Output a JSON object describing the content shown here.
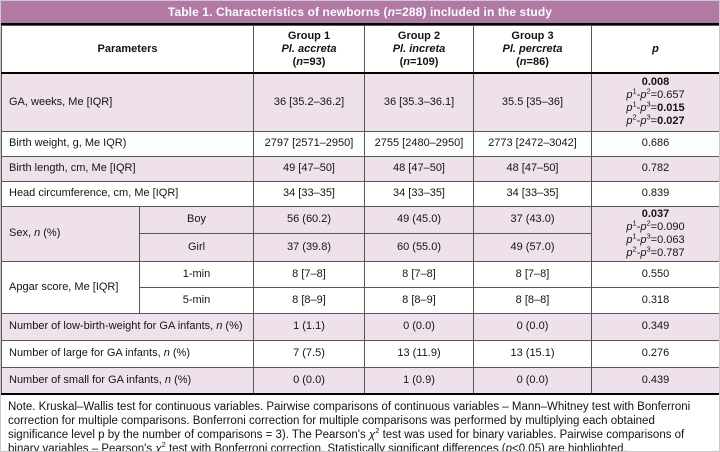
{
  "title": "Table 1. Characteristics of newborns (*n*=288) included in the study",
  "colors": {
    "title_bg": "#b179a4",
    "row_shade": "#eee1ec",
    "grid_line": "#55565a"
  },
  "header": {
    "parameters": "Parameters",
    "groups": [
      [
        "Group 1",
        "*Pl. accreta*",
        "(*n*=93)"
      ],
      [
        "Group 2",
        "*Pl. increta*",
        "(*n*=109)"
      ],
      [
        "Group 3",
        "*Pl. percreta*",
        "(*n*=86)"
      ]
    ],
    "p": "*p*"
  },
  "rows": [
    {
      "label": "GA, weeks, Me [IQR]",
      "values": [
        "36 [35.2–36.2]",
        "36 [35.3–36.1]",
        "35.5 [35–36]"
      ],
      "p": [
        "**0.008**",
        "*p*^1^-*p*^2^=0.657",
        "*p*^1^-*p*^3^=**0.015**",
        "*p*^2^-*p*^3^=**0.027**"
      ]
    },
    {
      "label": "Birth weight, g, Me IQR)",
      "values": [
        "2797 [2571–2950]",
        "2755 [2480–2950]",
        "2773 [2472–3042]"
      ],
      "p": "0.686"
    },
    {
      "label": "Birth length, cm, Me [IQR]",
      "values": [
        "49 [47–50]",
        "48 [47–50]",
        "48 [47–50]"
      ],
      "p": "0.782"
    },
    {
      "label": "Head circumference, cm, Me [IQR]",
      "values": [
        "34 [33–35]",
        "34 [33–35]",
        "34 [33–35]"
      ],
      "p": "0.839"
    },
    {
      "label": "Sex, *n* (%)",
      "sub": [
        {
          "name": "Boy",
          "values": [
            "56 (60.2)",
            "49 (45.0)",
            "37 (43.0)"
          ]
        },
        {
          "name": "Girl",
          "values": [
            "37 (39.8)",
            "60 (55.0)",
            "49 (57.0)"
          ]
        }
      ],
      "p": [
        "**0.037**",
        "*p*^1^-*p*^2^=0.090",
        "*p*^1^-*p*^3^=0.063",
        "*p*^2^-*p*^3^=0.787"
      ]
    },
    {
      "label": "Apgar score, Me [IQR]",
      "sub": [
        {
          "name": "1-min",
          "values": [
            "8 [7–8]",
            "8 [7–8]",
            "8 [7–8]"
          ],
          "p": "0.550"
        },
        {
          "name": "5-min",
          "values": [
            "8 [8–9]",
            "8 [8–9]",
            "8 [8–8]"
          ],
          "p": "0.318"
        }
      ]
    },
    {
      "label": "Number of low-birth-weight for GA infants, *n* (%)",
      "values": [
        "1 (1.1)",
        "0 (0.0)",
        "0 (0.0)"
      ],
      "p": "0.349"
    },
    {
      "label": "Number of large for GA infants, *n* (%)",
      "values": [
        "7 (7.5)",
        "13 (11.9)",
        "13 (15.1)"
      ],
      "p": "0.276"
    },
    {
      "label": "Number of small for GA infants, *n* (%)",
      "values": [
        "0 (0.0)",
        "1 (0.9)",
        "0 (0.0)"
      ],
      "p": "0.439"
    }
  ],
  "note": "Note. Kruskal–Wallis test for continuous variables. Pairwise comparisons of continuous variables – Mann–Whitney test with Bonferroni correction for multiple comparisons. Bonferroni correction for multiple comparisons was performed by multiplying each obtained significance level p by the number of comparisons = 3). The Pearson's *χ*^2^ test was used for binary variables. Pairwise comparisons of binary variables – Pearson's *χ*^2^ test with Bonferroni correction. Statistically significant differences (*p*<0.05) are highlighted."
}
